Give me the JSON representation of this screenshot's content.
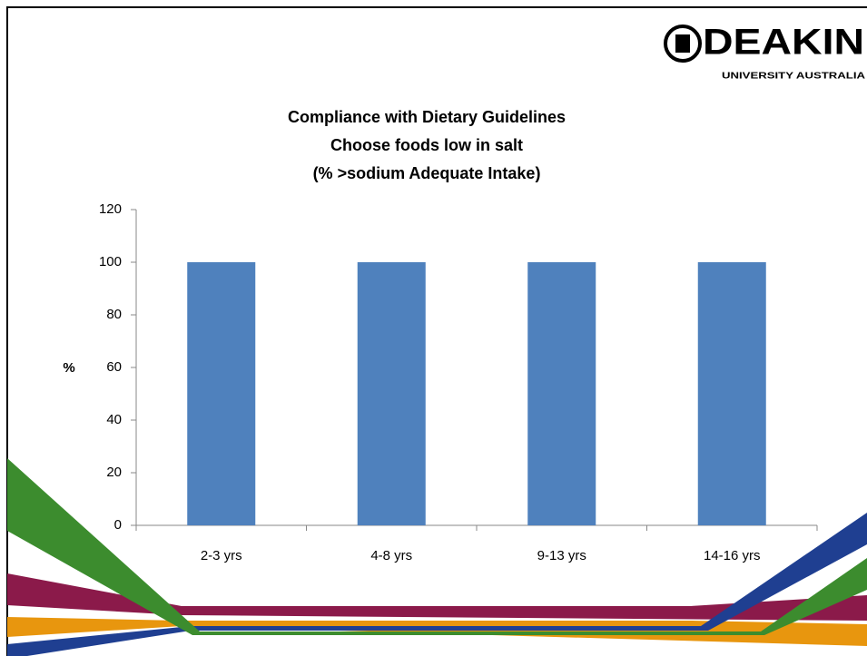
{
  "logo": {
    "name": "DEAKIN",
    "tagline": "UNIVERSITY AUSTRALIA"
  },
  "chart_data": {
    "type": "bar",
    "title": "Compliance with Dietary Guidelines",
    "subtitle": "Choose foods low in salt",
    "note": "(% >sodium Adequate Intake)",
    "y_label": "%",
    "categories": [
      "2-3 yrs",
      "4-8 yrs",
      "9-13 yrs",
      "14-16 yrs"
    ],
    "values": [
      100,
      100,
      100,
      100
    ],
    "color": "#4f81bd",
    "ylim": [
      0,
      120
    ],
    "yticks": [
      0,
      20,
      40,
      60,
      80,
      100,
      120
    ],
    "grid": false
  }
}
